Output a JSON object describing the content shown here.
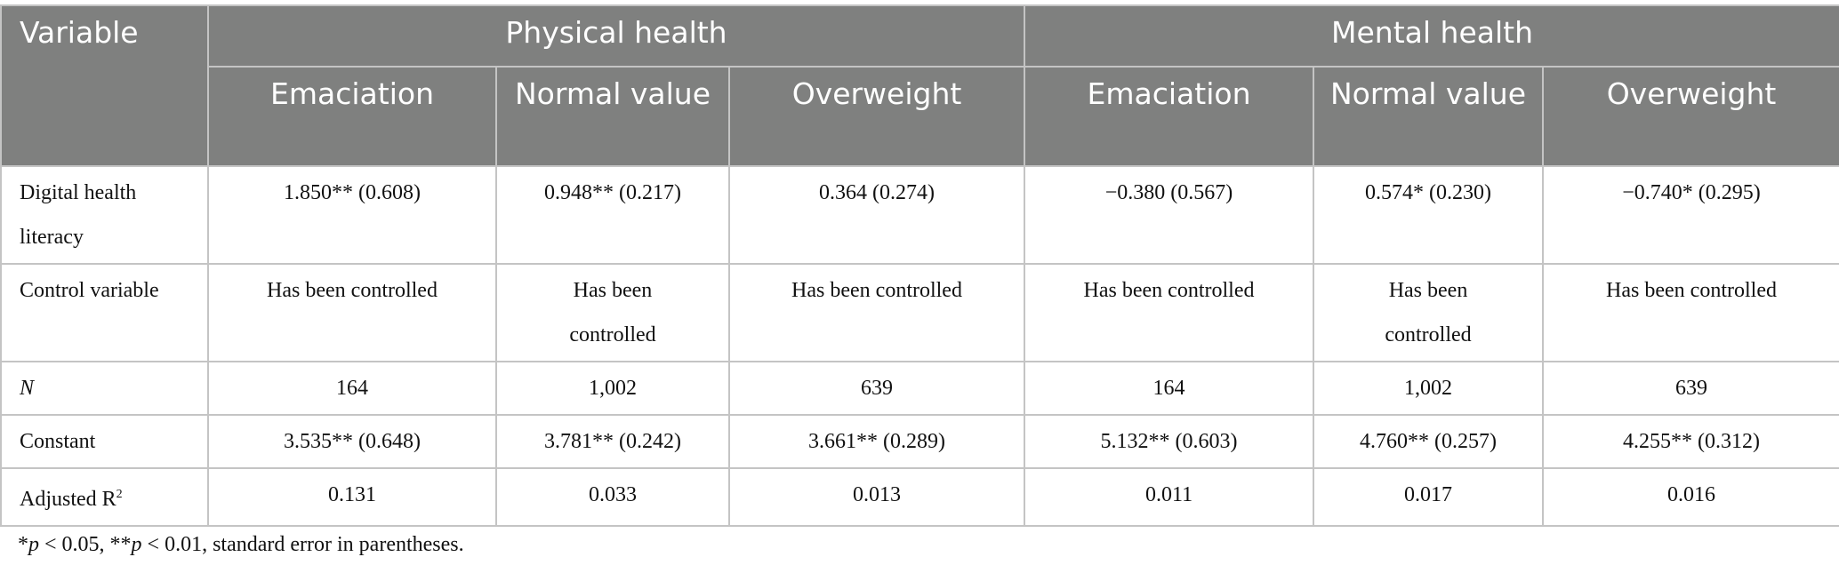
{
  "header": {
    "variable": "Variable",
    "groups": [
      "Physical health",
      "Mental health"
    ],
    "subcolumns": [
      "Emaciation",
      "Normal value",
      "Overweight",
      "Emaciation",
      "Normal value",
      "Overweight"
    ]
  },
  "rows": [
    {
      "label": "Digital health literacy",
      "cells": [
        "1.850** (0.608)",
        "0.948** (0.217)",
        "0.364 (0.274)",
        "−0.380 (0.567)",
        "0.574* (0.230)",
        "−0.740* (0.295)"
      ]
    },
    {
      "label": "Control variable",
      "cells": [
        "Has been controlled",
        "Has been controlled",
        "Has been controlled",
        "Has been controlled",
        "Has been controlled",
        "Has been controlled"
      ]
    },
    {
      "label": "N",
      "cells": [
        "164",
        "1,002",
        "639",
        "164",
        "1,002",
        "639"
      ]
    },
    {
      "label": "Constant",
      "cells": [
        "3.535** (0.648)",
        "3.781** (0.242)",
        "3.661** (0.289)",
        "5.132** (0.603)",
        "4.760** (0.257)",
        "4.255** (0.312)"
      ]
    },
    {
      "label": "Adjusted R",
      "label_sup": "2",
      "cells": [
        "0.131",
        "0.033",
        "0.013",
        "0.011",
        "0.017",
        "0.016"
      ]
    }
  ],
  "footnote": {
    "a": "*",
    "p1": "p",
    "b": " < 0.05, **",
    "p2": "p",
    "c": " < 0.01, standard error in parentheses."
  }
}
